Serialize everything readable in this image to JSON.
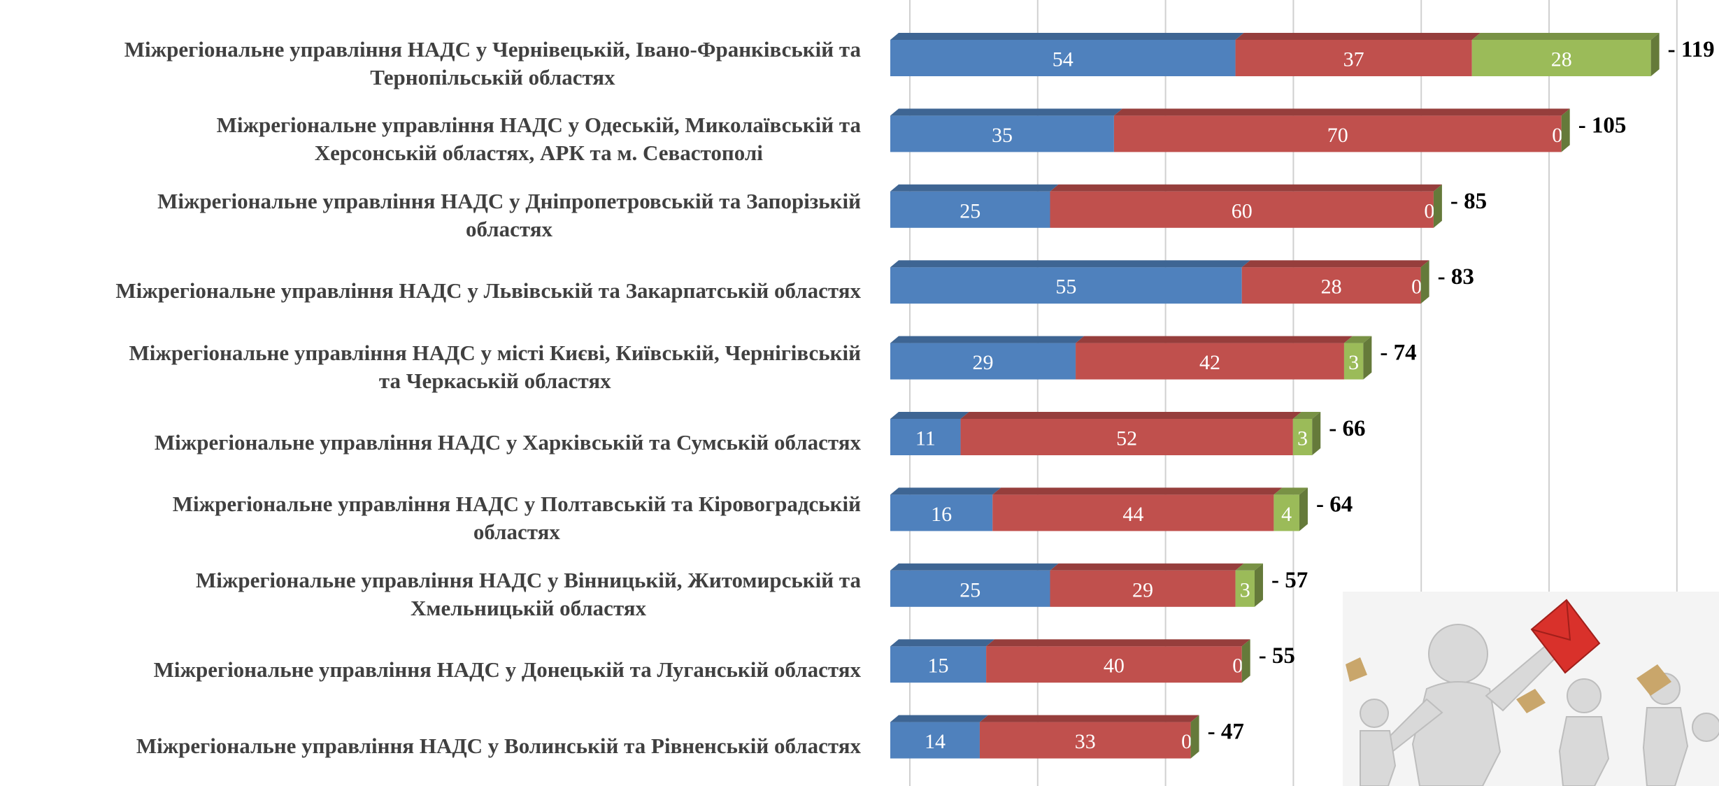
{
  "chart_data": {
    "type": "stacked-bar-horizontal",
    "categories": [
      [
        "Міжрегіональне управління НАДС у Чернівецькій, Івано-Франківській та",
        "Тернопільській  областях"
      ],
      [
        "Міжрегіональне управління НАДС у Одеській, Миколаївській та",
        "Херсонській областях, АРК та м. Севастополі"
      ],
      [
        "Міжрегіональне управління НАДС у Дніпропетровській  та Запорізькій",
        "областях"
      ],
      [
        "Міжрегіональне управління НАДС у Львівській та Закарпатській  областях"
      ],
      [
        "Міжрегіональне управління НАДС у місті Києві, Київській, Чернігівській",
        "та Черкаській  областях"
      ],
      [
        "Міжрегіональне управління НАДС у Харківській та Сумській областях"
      ],
      [
        "Міжрегіональне управління НАДС у Полтавській  та Кіровоградській",
        "областях"
      ],
      [
        "Міжрегіональне управління НАДС у Вінницькій, Житомирській та",
        "Хмельницькій  областях"
      ],
      [
        "Міжрегіональне управління НАДС у Донецькій та Луганській областях"
      ],
      [
        "Міжрегіональне управління НАДС у Волинській та Рівненській областях"
      ]
    ],
    "series": [
      {
        "color": "#4f81bd",
        "values": [
          54,
          35,
          25,
          55,
          29,
          11,
          16,
          25,
          15,
          14
        ]
      },
      {
        "color": "#c0504d",
        "values": [
          37,
          70,
          60,
          28,
          42,
          52,
          44,
          29,
          40,
          33
        ]
      },
      {
        "color": "#9bbb59",
        "values": [
          28,
          0,
          0,
          0,
          3,
          3,
          4,
          3,
          0,
          0
        ]
      }
    ],
    "totals": {
      "values": [
        119,
        105,
        85,
        83,
        74,
        66,
        64,
        57,
        55,
        47
      ],
      "value_labels": [
        "- 119",
        "- 105",
        "- 85",
        "- 83",
        "- 74",
        "- 66",
        "- 64",
        "- 57",
        "- 55",
        "- 47"
      ]
    },
    "xlim": [
      0,
      125
    ],
    "xticks": [
      0,
      20,
      40,
      60,
      80,
      100,
      120
    ],
    "grid": true
  }
}
